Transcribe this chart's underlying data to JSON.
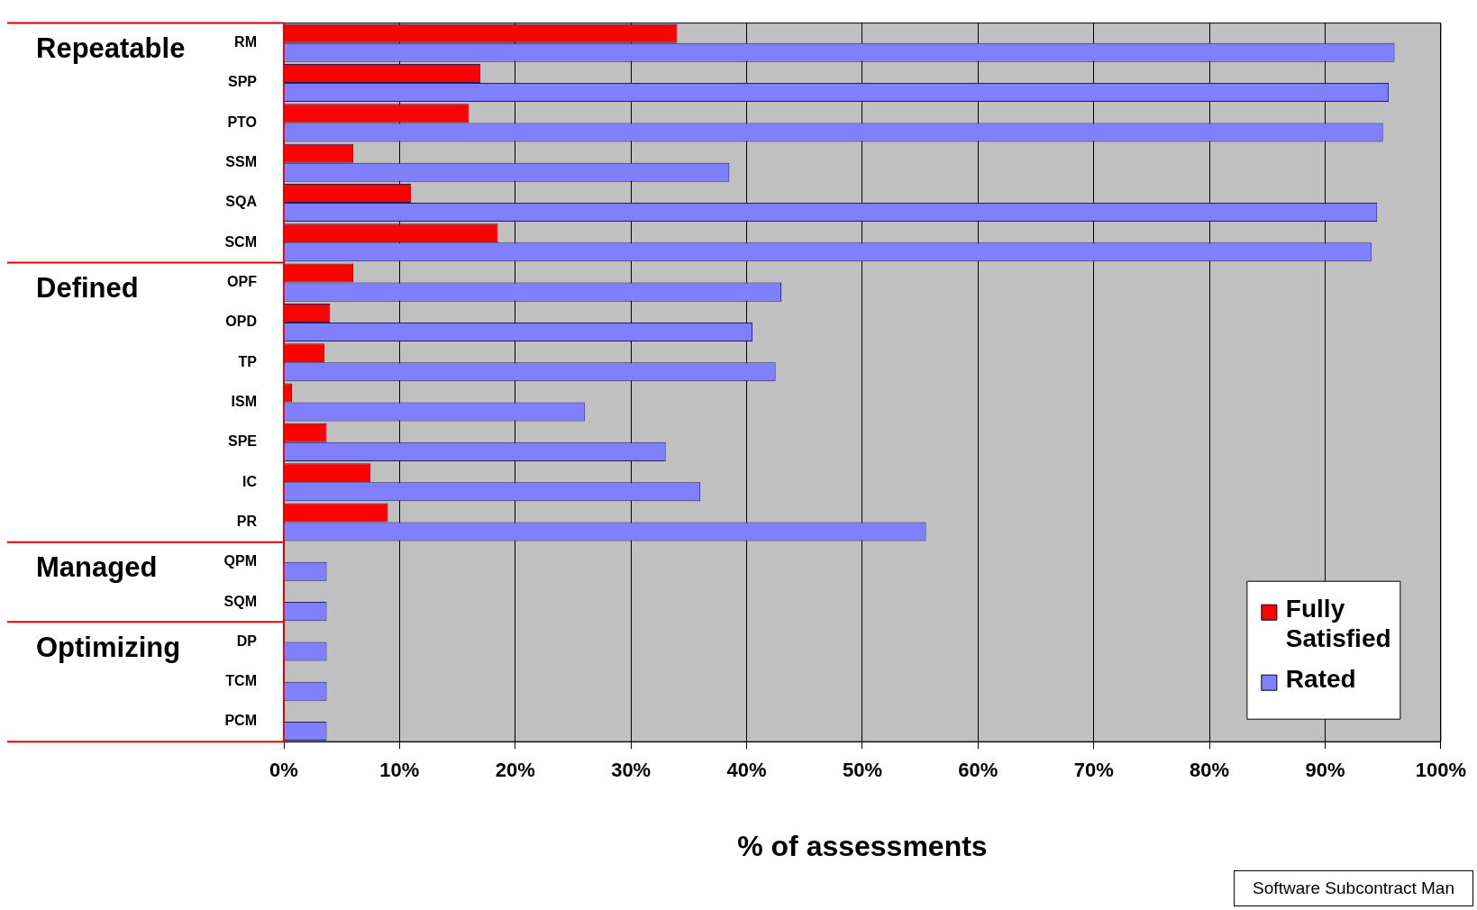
{
  "chart_data": {
    "type": "bar",
    "orientation": "horizontal",
    "xlabel": "% of assessments",
    "categories": [
      "RM",
      "SPP",
      "PTO",
      "SSM",
      "SQA",
      "SCM",
      "OPF",
      "OPD",
      "TP",
      "ISM",
      "SPE",
      "IC",
      "PR",
      "QPM",
      "SQM",
      "DP",
      "TCM",
      "PCM"
    ],
    "series": [
      {
        "name": "Fully Satisfied",
        "color": "#ff0000",
        "values": [
          34,
          17,
          16,
          6,
          11,
          18.5,
          6,
          4,
          3.5,
          0.7,
          3.7,
          7.5,
          9,
          0,
          0,
          0,
          0,
          0
        ]
      },
      {
        "name": "Rated",
        "color": "#8080ff",
        "values": [
          96,
          95.5,
          95,
          38.5,
          94.5,
          94,
          43,
          40.5,
          42.5,
          26,
          33,
          36,
          55.5,
          3.7,
          3.7,
          3.7,
          3.7,
          3.7
        ]
      }
    ],
    "xlim": [
      0,
      100
    ],
    "xticks": [
      {
        "value": 0,
        "label": "0%"
      },
      {
        "value": 10,
        "label": "10%"
      },
      {
        "value": 20,
        "label": "20%"
      },
      {
        "value": 30,
        "label": "30%"
      },
      {
        "value": 40,
        "label": "40%"
      },
      {
        "value": 50,
        "label": "50%"
      },
      {
        "value": 60,
        "label": "60%"
      },
      {
        "value": 70,
        "label": "70%"
      },
      {
        "value": 80,
        "label": "80%"
      },
      {
        "value": 90,
        "label": "90%"
      },
      {
        "value": 100,
        "label": "100%"
      }
    ],
    "grid": "x",
    "legend": "bottom right",
    "annotations": [
      "Repeatable",
      "Defined",
      "Managed",
      "Optimizing",
      "Software Subcontract Man"
    ]
  }
}
